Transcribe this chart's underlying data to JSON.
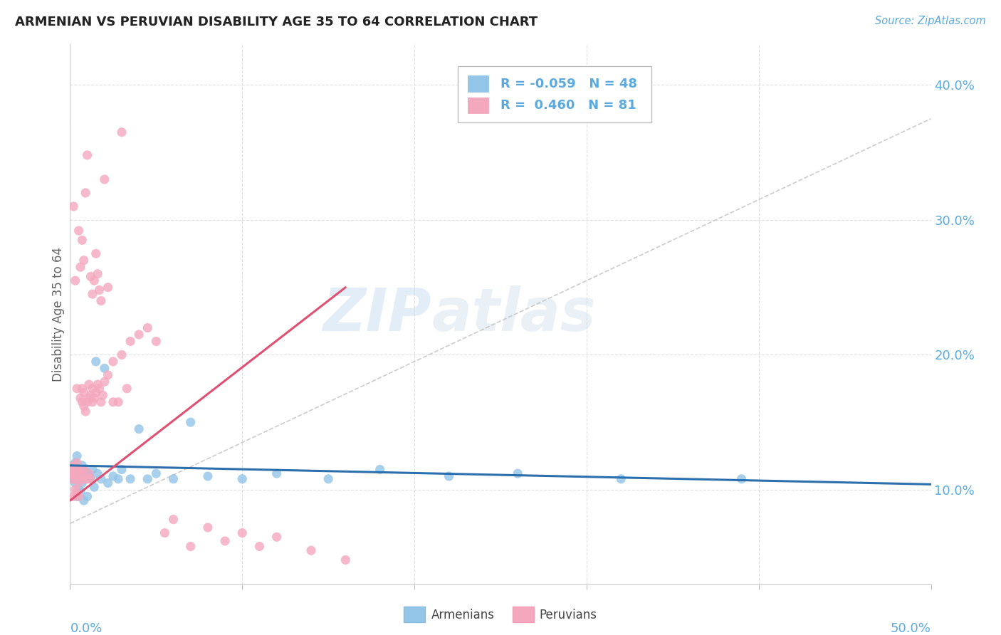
{
  "title": "ARMENIAN VS PERUVIAN DISABILITY AGE 35 TO 64 CORRELATION CHART",
  "source": "Source: ZipAtlas.com",
  "ylabel": "Disability Age 35 to 64",
  "ytick_values": [
    0.1,
    0.2,
    0.3,
    0.4
  ],
  "xlim": [
    0.0,
    0.5
  ],
  "ylim": [
    0.03,
    0.43
  ],
  "legend_blue_r": "-0.059",
  "legend_blue_n": "48",
  "legend_pink_r": "0.460",
  "legend_pink_n": "81",
  "blue_color": "#92c5e8",
  "pink_color": "#f4a8be",
  "blue_line_color": "#2c6fad",
  "pink_line_color": "#e05070",
  "dashed_line_color": "#c0c0c0",
  "watermark_zip": "ZIP",
  "watermark_atlas": "atlas",
  "armenians_x": [
    0.001,
    0.002,
    0.002,
    0.003,
    0.003,
    0.003,
    0.004,
    0.004,
    0.004,
    0.005,
    0.005,
    0.005,
    0.006,
    0.006,
    0.007,
    0.007,
    0.008,
    0.008,
    0.009,
    0.01,
    0.01,
    0.011,
    0.012,
    0.013,
    0.014,
    0.015,
    0.016,
    0.018,
    0.02,
    0.022,
    0.025,
    0.028,
    0.03,
    0.035,
    0.04,
    0.045,
    0.05,
    0.06,
    0.07,
    0.08,
    0.1,
    0.12,
    0.15,
    0.18,
    0.22,
    0.26,
    0.32,
    0.39
  ],
  "armenians_y": [
    0.115,
    0.118,
    0.108,
    0.112,
    0.105,
    0.12,
    0.095,
    0.11,
    0.125,
    0.1,
    0.115,
    0.108,
    0.112,
    0.098,
    0.105,
    0.118,
    0.092,
    0.115,
    0.108,
    0.112,
    0.095,
    0.11,
    0.108,
    0.115,
    0.102,
    0.195,
    0.112,
    0.108,
    0.19,
    0.105,
    0.11,
    0.108,
    0.115,
    0.108,
    0.145,
    0.108,
    0.112,
    0.108,
    0.15,
    0.11,
    0.108,
    0.112,
    0.108,
    0.115,
    0.11,
    0.112,
    0.108,
    0.108
  ],
  "peruvians_x": [
    0.001,
    0.001,
    0.002,
    0.002,
    0.002,
    0.003,
    0.003,
    0.003,
    0.004,
    0.004,
    0.004,
    0.005,
    0.005,
    0.005,
    0.005,
    0.006,
    0.006,
    0.006,
    0.007,
    0.007,
    0.007,
    0.008,
    0.008,
    0.008,
    0.009,
    0.009,
    0.01,
    0.01,
    0.011,
    0.011,
    0.012,
    0.012,
    0.013,
    0.013,
    0.014,
    0.015,
    0.016,
    0.017,
    0.018,
    0.019,
    0.02,
    0.022,
    0.025,
    0.028,
    0.03,
    0.033,
    0.035,
    0.04,
    0.045,
    0.05,
    0.055,
    0.06,
    0.07,
    0.08,
    0.09,
    0.1,
    0.11,
    0.12,
    0.14,
    0.16,
    0.002,
    0.003,
    0.004,
    0.005,
    0.006,
    0.007,
    0.008,
    0.009,
    0.01,
    0.011,
    0.012,
    0.013,
    0.014,
    0.015,
    0.016,
    0.017,
    0.018,
    0.02,
    0.022,
    0.025,
    0.03
  ],
  "peruvians_y": [
    0.115,
    0.108,
    0.112,
    0.095,
    0.118,
    0.1,
    0.108,
    0.115,
    0.098,
    0.112,
    0.12,
    0.105,
    0.115,
    0.095,
    0.108,
    0.112,
    0.168,
    0.115,
    0.165,
    0.108,
    0.175,
    0.162,
    0.115,
    0.172,
    0.158,
    0.108,
    0.165,
    0.108,
    0.178,
    0.112,
    0.17,
    0.108,
    0.175,
    0.165,
    0.168,
    0.172,
    0.178,
    0.175,
    0.165,
    0.17,
    0.18,
    0.185,
    0.195,
    0.165,
    0.2,
    0.175,
    0.21,
    0.215,
    0.22,
    0.21,
    0.068,
    0.078,
    0.058,
    0.072,
    0.062,
    0.068,
    0.058,
    0.065,
    0.055,
    0.048,
    0.31,
    0.255,
    0.175,
    0.292,
    0.265,
    0.285,
    0.27,
    0.32,
    0.348,
    0.168,
    0.258,
    0.245,
    0.255,
    0.275,
    0.26,
    0.248,
    0.24,
    0.33,
    0.25,
    0.165,
    0.365
  ],
  "blue_line_x": [
    0.0,
    0.5
  ],
  "blue_line_y": [
    0.118,
    0.104
  ],
  "pink_line_x": [
    0.0,
    0.16
  ],
  "pink_line_y": [
    0.092,
    0.25
  ]
}
